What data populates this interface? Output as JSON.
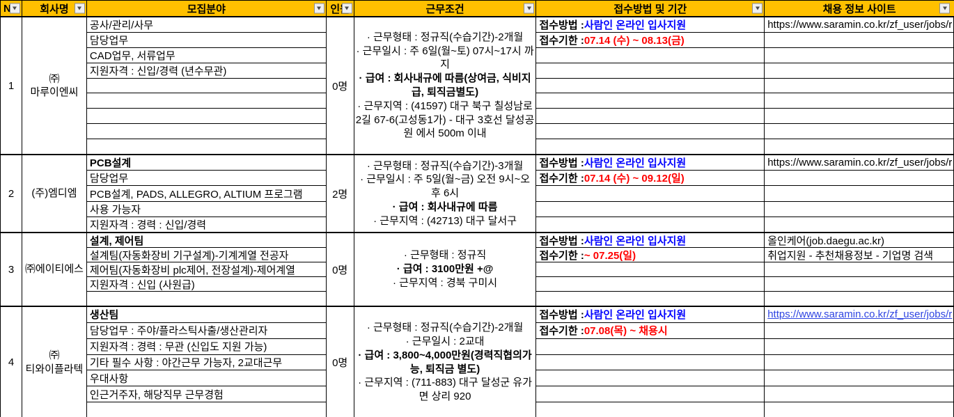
{
  "colors": {
    "header_bg": "#FFC000",
    "method_blue": "#0000FF",
    "deadline_red": "#FF0000",
    "hyperlink_blue": "#2F45E2"
  },
  "header": {
    "columns": [
      {
        "label": "N"
      },
      {
        "label": "회사명"
      },
      {
        "label": "모집분야"
      },
      {
        "label": "인원"
      },
      {
        "label": "근무조건"
      },
      {
        "label": "접수방법 및 기간"
      },
      {
        "label": "채용 정보 사이트"
      }
    ],
    "filter_icon": "filter-dropdown-icon"
  },
  "rows": [
    {
      "no": "1",
      "company": "㈜\n마루이엔씨",
      "headcount": "0명",
      "fields": [
        "공사/관리/사무",
        "담당업무",
        "CAD업무, 서류업무",
        "지원자격 : 신입/경력 (년수무관)",
        "",
        "",
        "",
        "",
        ""
      ],
      "work": [
        "· 근무형태 : 정규직(수습기간)-2개월",
        "· 근무일시 : 주 6일(월~토) 07시~17시 까지",
        "· 급여 : 회사내규에 따름(상여금, 식비지급, 퇴직금별도)",
        "· 근무지역 : (41597) 대구 북구 칠성남로2길 67-6(고성동1가) - 대구 3호선 달성공원 에서 500m 이내"
      ],
      "apply": {
        "method_label": "접수방법 : ",
        "method_value": "사람인 온라인 입사지원",
        "deadline_label": "접수기한 : ",
        "deadline_value": "07.14 (수) ~ 08.13(금)"
      },
      "site": [
        "https://www.saramin.co.kr/zf_user/jobs/r",
        "",
        "",
        "",
        "",
        "",
        "",
        "",
        ""
      ]
    },
    {
      "no": "2",
      "company": "(주)엠디엠",
      "headcount": "2명",
      "fields": [
        "PCB설계",
        "담당업무",
        "PCB설계, PADS, ALLEGRO, ALTIUM 프로그램",
        "사용 가능자",
        "지원자격 : 경력 : 신입/경력"
      ],
      "work": [
        "· 근무형태 : 정규직(수습기간)-3개월",
        "· 근무일시 : 주 5일(월~금) 오전 9시~오후 6시",
        "· 급여 : 회사내규에 따름",
        "· 근무지역 : (42713) 대구 달서구"
      ],
      "apply": {
        "method_label": "접수방법 : ",
        "method_value": "사람인 온라인 입사지원",
        "deadline_label": "접수기한 : ",
        "deadline_value": "07.14 (수) ~ 09.12(일)"
      },
      "site": [
        "https://www.saramin.co.kr/zf_user/jobs/r",
        "",
        "",
        "",
        ""
      ]
    },
    {
      "no": "3",
      "company": "㈜에이티에스",
      "headcount": "0명",
      "fields": [
        "설계, 제어팀",
        "설계팀(자동화장비 기구설계)-기계계열 전공자",
        "제어팀(자동화장비 plc제어, 전장설계)-제어계열",
        "지원자격 : 신입 (사원급)",
        ""
      ],
      "work": [
        "· 근무형태 : 정규직",
        "· 급여 : 3100만원 +@",
        "· 근무지역 : 경북 구미시"
      ],
      "apply": {
        "method_label": "접수방법 : ",
        "method_value": "사람인 온라인 입사지원",
        "deadline_label": "접수기한 : ",
        "deadline_value": "~ 07.25(일)"
      },
      "site": [
        "올인케어(job.daegu.ac.kr)",
        "취업지원 - 추천채용정보 - 기업명 검색",
        "",
        "",
        ""
      ]
    },
    {
      "no": "4",
      "company": "㈜\n티와이플라텍",
      "headcount": "0명",
      "fields": [
        "생산팀",
        "담당업무 : 주야/플라스틱사출/생산관리자",
        "지원자격 : 경력 : 무관 (신입도 지원 가능)",
        "기타 필수 사항 : 야간근무 가능자, 2교대근무",
        "우대사항",
        "인근거주자, 해당직무 근무경험",
        ""
      ],
      "work": [
        "· 근무형태 : 정규직(수습기간)-2개월",
        "· 근무일시 : 2교대",
        "· 급여 : 3,800~4,000만원(경력직협의가능, 퇴직금 별도)",
        "· 근무지역 : (711-883) 대구 달성군 유가면 상리 920"
      ],
      "apply": {
        "method_label": "접수방법 : ",
        "method_value": "사람인 온라인 입사지원",
        "deadline_label": "접수기한 : ",
        "deadline_value": "07.08(목) ~ 채용시"
      },
      "site": [
        "https://www.saramin.co.kr/zf_user/jobs/r",
        "",
        "",
        "",
        "",
        "",
        ""
      ]
    }
  ]
}
